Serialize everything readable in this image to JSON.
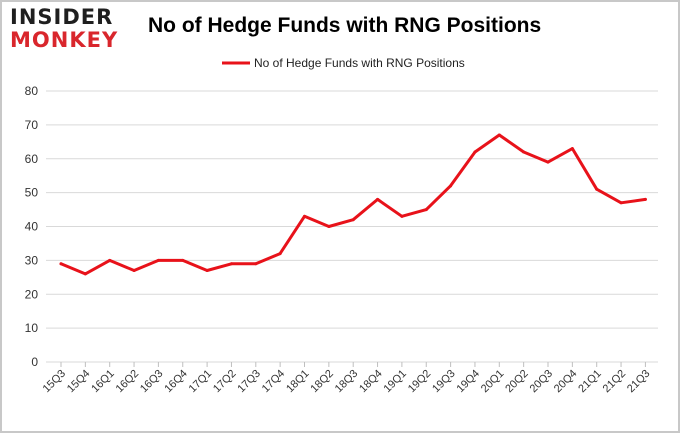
{
  "logo": {
    "line1": "INSIDER",
    "line2": "MONKEY"
  },
  "chart_data": {
    "type": "line",
    "title": "No of Hedge Funds with RNG Positions",
    "xlabel": "",
    "ylabel": "",
    "ylim": [
      0,
      80
    ],
    "yticks": [
      0,
      10,
      20,
      30,
      40,
      50,
      60,
      70,
      80
    ],
    "grid": true,
    "legend_position": "top-center",
    "categories": [
      "15Q3",
      "15Q4",
      "16Q1",
      "16Q2",
      "16Q3",
      "16Q4",
      "17Q1",
      "17Q2",
      "17Q3",
      "17Q4",
      "18Q1",
      "18Q2",
      "18Q3",
      "18Q4",
      "19Q1",
      "19Q2",
      "19Q3",
      "19Q4",
      "20Q1",
      "20Q2",
      "20Q3",
      "20Q4",
      "21Q1",
      "21Q2",
      "21Q3"
    ],
    "series": [
      {
        "name": "No of Hedge Funds with RNG Positions",
        "color": "#e8121a",
        "values": [
          29,
          26,
          30,
          27,
          30,
          30,
          27,
          29,
          29,
          32,
          43,
          40,
          42,
          48,
          43,
          45,
          52,
          62,
          67,
          62,
          59,
          63,
          51,
          47,
          48
        ]
      }
    ]
  }
}
